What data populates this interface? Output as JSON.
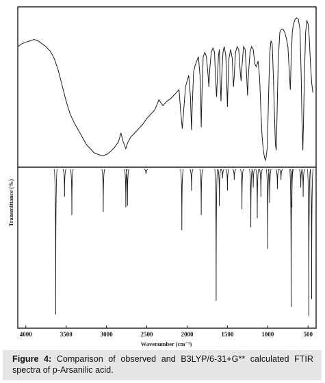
{
  "chart_data": {
    "type": "line",
    "ylabel": "Transmittance (%)",
    "xlabel": "Wavenumber (cm⁻¹)",
    "xlim": [
      4100,
      400
    ],
    "x_axis_reversed": true,
    "x_ticks": [
      4000,
      3500,
      3000,
      2500,
      2000,
      1500,
      1000,
      500
    ],
    "grid": false,
    "panels": [
      {
        "panel": "top",
        "trace": [
          [
            4100,
            0.8
          ],
          [
            4050,
            0.82
          ],
          [
            4000,
            0.83
          ],
          [
            3950,
            0.84
          ],
          [
            3900,
            0.85
          ],
          [
            3850,
            0.84
          ],
          [
            3800,
            0.82
          ],
          [
            3750,
            0.8
          ],
          [
            3700,
            0.77
          ],
          [
            3650,
            0.72
          ],
          [
            3600,
            0.64
          ],
          [
            3550,
            0.53
          ],
          [
            3500,
            0.42
          ],
          [
            3450,
            0.33
          ],
          [
            3400,
            0.27
          ],
          [
            3350,
            0.22
          ],
          [
            3300,
            0.17
          ],
          [
            3250,
            0.12
          ],
          [
            3200,
            0.09
          ],
          [
            3150,
            0.06
          ],
          [
            3100,
            0.05
          ],
          [
            3050,
            0.04
          ],
          [
            3000,
            0.05
          ],
          [
            2950,
            0.07
          ],
          [
            2900,
            0.1
          ],
          [
            2850,
            0.14
          ],
          [
            2820,
            0.2
          ],
          [
            2800,
            0.15
          ],
          [
            2780,
            0.12
          ],
          [
            2760,
            0.09
          ],
          [
            2740,
            0.13
          ],
          [
            2700,
            0.17
          ],
          [
            2650,
            0.2
          ],
          [
            2600,
            0.23
          ],
          [
            2550,
            0.26
          ],
          [
            2500,
            0.3
          ],
          [
            2450,
            0.33
          ],
          [
            2400,
            0.36
          ],
          [
            2350,
            0.43
          ],
          [
            2300,
            0.39
          ],
          [
            2250,
            0.42
          ],
          [
            2200,
            0.44
          ],
          [
            2150,
            0.47
          ],
          [
            2100,
            0.5
          ],
          [
            2080,
            0.35
          ],
          [
            2060,
            0.23
          ],
          [
            2045,
            0.34
          ],
          [
            2020,
            0.52
          ],
          [
            2000,
            0.56
          ],
          [
            1980,
            0.6
          ],
          [
            1960,
            0.46
          ],
          [
            1950,
            0.3
          ],
          [
            1945,
            0.22
          ],
          [
            1935,
            0.4
          ],
          [
            1920,
            0.62
          ],
          [
            1900,
            0.67
          ],
          [
            1880,
            0.7
          ],
          [
            1860,
            0.73
          ],
          [
            1840,
            0.6
          ],
          [
            1830,
            0.4
          ],
          [
            1825,
            0.24
          ],
          [
            1815,
            0.5
          ],
          [
            1800,
            0.73
          ],
          [
            1780,
            0.76
          ],
          [
            1760,
            0.73
          ],
          [
            1740,
            0.6
          ],
          [
            1730,
            0.52
          ],
          [
            1720,
            0.64
          ],
          [
            1700,
            0.76
          ],
          [
            1680,
            0.79
          ],
          [
            1660,
            0.76
          ],
          [
            1645,
            0.56
          ],
          [
            1635,
            0.45
          ],
          [
            1625,
            0.57
          ],
          [
            1610,
            0.74
          ],
          [
            1600,
            0.78
          ],
          [
            1590,
            0.56
          ],
          [
            1580,
            0.42
          ],
          [
            1570,
            0.6
          ],
          [
            1555,
            0.76
          ],
          [
            1540,
            0.8
          ],
          [
            1520,
            0.74
          ],
          [
            1505,
            0.48
          ],
          [
            1500,
            0.38
          ],
          [
            1492,
            0.54
          ],
          [
            1480,
            0.72
          ],
          [
            1460,
            0.78
          ],
          [
            1440,
            0.72
          ],
          [
            1425,
            0.52
          ],
          [
            1415,
            0.6
          ],
          [
            1400,
            0.76
          ],
          [
            1380,
            0.8
          ],
          [
            1360,
            0.78
          ],
          [
            1340,
            0.62
          ],
          [
            1330,
            0.56
          ],
          [
            1320,
            0.66
          ],
          [
            1300,
            0.8
          ],
          [
            1280,
            0.78
          ],
          [
            1260,
            0.58
          ],
          [
            1250,
            0.46
          ],
          [
            1240,
            0.6
          ],
          [
            1220,
            0.76
          ],
          [
            1200,
            0.8
          ],
          [
            1180,
            0.78
          ],
          [
            1160,
            0.68
          ],
          [
            1140,
            0.66
          ],
          [
            1120,
            0.7
          ],
          [
            1100,
            0.58
          ],
          [
            1085,
            0.35
          ],
          [
            1070,
            0.18
          ],
          [
            1055,
            0.08
          ],
          [
            1040,
            0.03
          ],
          [
            1030,
            0.01
          ],
          [
            1020,
            0.03
          ],
          [
            1005,
            0.1
          ],
          [
            990,
            0.45
          ],
          [
            975,
            0.75
          ],
          [
            960,
            0.84
          ],
          [
            945,
            0.82
          ],
          [
            930,
            0.6
          ],
          [
            915,
            0.3
          ],
          [
            905,
            0.12
          ],
          [
            895,
            0.08
          ],
          [
            885,
            0.3
          ],
          [
            870,
            0.7
          ],
          [
            850,
            0.9
          ],
          [
            830,
            0.92
          ],
          [
            810,
            0.92
          ],
          [
            790,
            0.9
          ],
          [
            770,
            0.86
          ],
          [
            750,
            0.8
          ],
          [
            730,
            0.6
          ],
          [
            720,
            0.5
          ],
          [
            710,
            0.7
          ],
          [
            695,
            0.9
          ],
          [
            680,
            0.96
          ],
          [
            660,
            0.99
          ],
          [
            640,
            1.0
          ],
          [
            620,
            0.99
          ],
          [
            600,
            0.92
          ],
          [
            585,
            0.6
          ],
          [
            575,
            0.28
          ],
          [
            565,
            0.08
          ],
          [
            555,
            0.3
          ],
          [
            545,
            0.6
          ],
          [
            530,
            0.9
          ],
          [
            515,
            0.98
          ],
          [
            500,
            0.96
          ],
          [
            485,
            0.86
          ],
          [
            470,
            0.68
          ],
          [
            455,
            0.55
          ],
          [
            440,
            0.48
          ]
        ]
      },
      {
        "panel": "bottom",
        "peaks": [
          [
            3630,
            0.95
          ],
          [
            3520,
            0.18
          ],
          [
            3430,
            0.3
          ],
          [
            3040,
            0.28
          ],
          [
            2760,
            0.25
          ],
          [
            2740,
            0.24
          ],
          [
            2510,
            0.03
          ],
          [
            2065,
            0.4
          ],
          [
            1945,
            0.14
          ],
          [
            1825,
            0.3
          ],
          [
            1640,
            0.86
          ],
          [
            1600,
            0.24
          ],
          [
            1560,
            0.06
          ],
          [
            1500,
            0.14
          ],
          [
            1415,
            0.07
          ],
          [
            1320,
            0.26
          ],
          [
            1210,
            0.38
          ],
          [
            1180,
            0.12
          ],
          [
            1130,
            0.32
          ],
          [
            1085,
            0.18
          ],
          [
            1000,
            0.52
          ],
          [
            975,
            0.22
          ],
          [
            880,
            0.13
          ],
          [
            835,
            0.07
          ],
          [
            710,
            0.9
          ],
          [
            700,
            0.25
          ],
          [
            590,
            0.12
          ],
          [
            560,
            0.18
          ],
          [
            490,
            0.96
          ],
          [
            455,
            0.85
          ]
        ]
      }
    ]
  },
  "caption": {
    "figure_label": "Figure 4:",
    "text": "Comparison of observed and B3LYP/6-31+G** calculated FTIR spectra of p-Arsanilic acid."
  },
  "colors": {
    "line": "#1a1a1a",
    "caption_background": "#e6e6e6"
  }
}
